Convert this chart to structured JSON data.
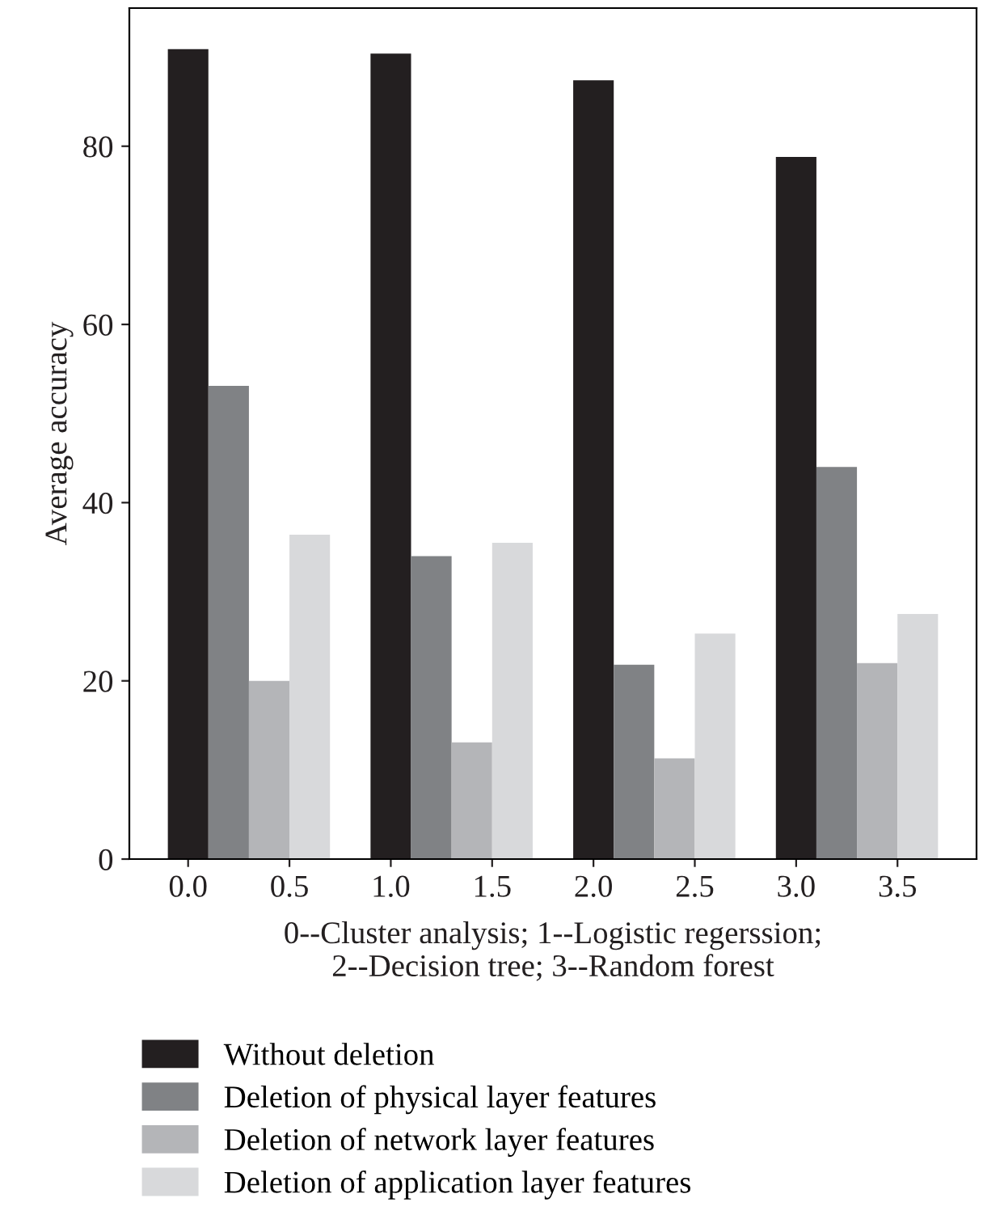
{
  "chart_data": {
    "type": "bar",
    "ylabel": "Average accuracy",
    "xlabel": "0--Cluster analysis; 1--Logistic regerssion;\n2--Decision tree; 3--Random forest",
    "series": [
      {
        "name": "Without deletion",
        "color": "#231f20",
        "x": [
          0,
          1,
          2,
          3
        ],
        "values": [
          90.9,
          90.4,
          87.4,
          78.8
        ]
      },
      {
        "name": "Deletion of physical layer features",
        "color": "#808285",
        "x": [
          0.2,
          1.2,
          2.2,
          3.2
        ],
        "values": [
          53.1,
          34.0,
          21.8,
          44.0
        ]
      },
      {
        "name": "Deletion of network layer features",
        "color": "#b4b5b8",
        "x": [
          0.4,
          1.4,
          2.4,
          3.4
        ],
        "values": [
          20.0,
          13.1,
          11.3,
          22.0
        ]
      },
      {
        "name": "Deletion of application layer features",
        "color": "#d8d9db",
        "x": [
          0.6,
          1.6,
          2.6,
          3.6
        ],
        "values": [
          36.4,
          35.5,
          25.3,
          27.5
        ]
      }
    ],
    "xlim": [
      -0.29,
      3.89
    ],
    "xticks": [
      {
        "value": 0,
        "label": "0.0"
      },
      {
        "value": 0.5,
        "label": "0.5"
      },
      {
        "value": 1,
        "label": "1.0"
      },
      {
        "value": 1.5,
        "label": "1.5"
      },
      {
        "value": 2,
        "label": "2.0"
      },
      {
        "value": 2.5,
        "label": "2.5"
      },
      {
        "value": 3,
        "label": "3.0"
      },
      {
        "value": 3.5,
        "label": "3.5"
      }
    ],
    "ylim": [
      0,
      95.5
    ],
    "yticks": [
      0,
      20,
      40,
      60,
      80
    ],
    "grid": false,
    "legend": "bottom"
  }
}
